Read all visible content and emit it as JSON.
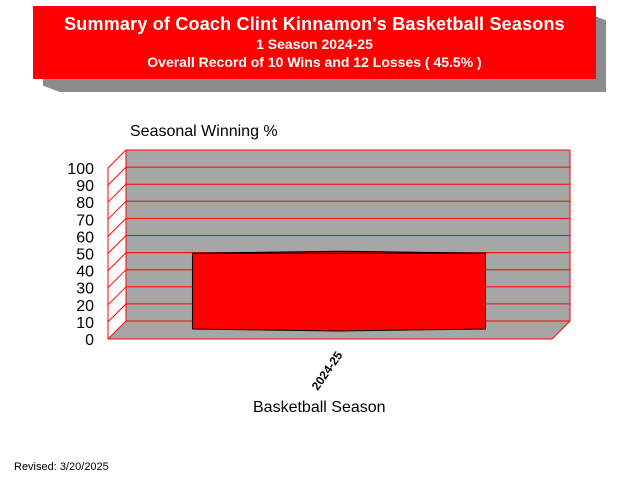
{
  "header": {
    "title": "Summary of Coach Clint Kinnamon's Basketball Seasons",
    "subtitle": "1 Season  2024-25",
    "record": "Overall Record of 10 Wins and 12 Losses ( 45.5% )"
  },
  "footer": {
    "revised": "Revised: 3/20/2025"
  },
  "colors": {
    "banner": "#ff0000",
    "bar": "#ff0000",
    "plot_back": "#a6a6a6",
    "grid": "#ff0000"
  },
  "chart_data": {
    "type": "bar",
    "title": "Seasonal Winning %",
    "xlabel": "Basketball Season",
    "ylabel": "",
    "categories": [
      "2024-25"
    ],
    "values": [
      45.5
    ],
    "ylim": [
      0,
      100
    ],
    "yticks": [
      "0",
      "10",
      "20",
      "30",
      "40",
      "50",
      "60",
      "70",
      "80",
      "90",
      "100"
    ],
    "grid": true,
    "style": "3d"
  }
}
